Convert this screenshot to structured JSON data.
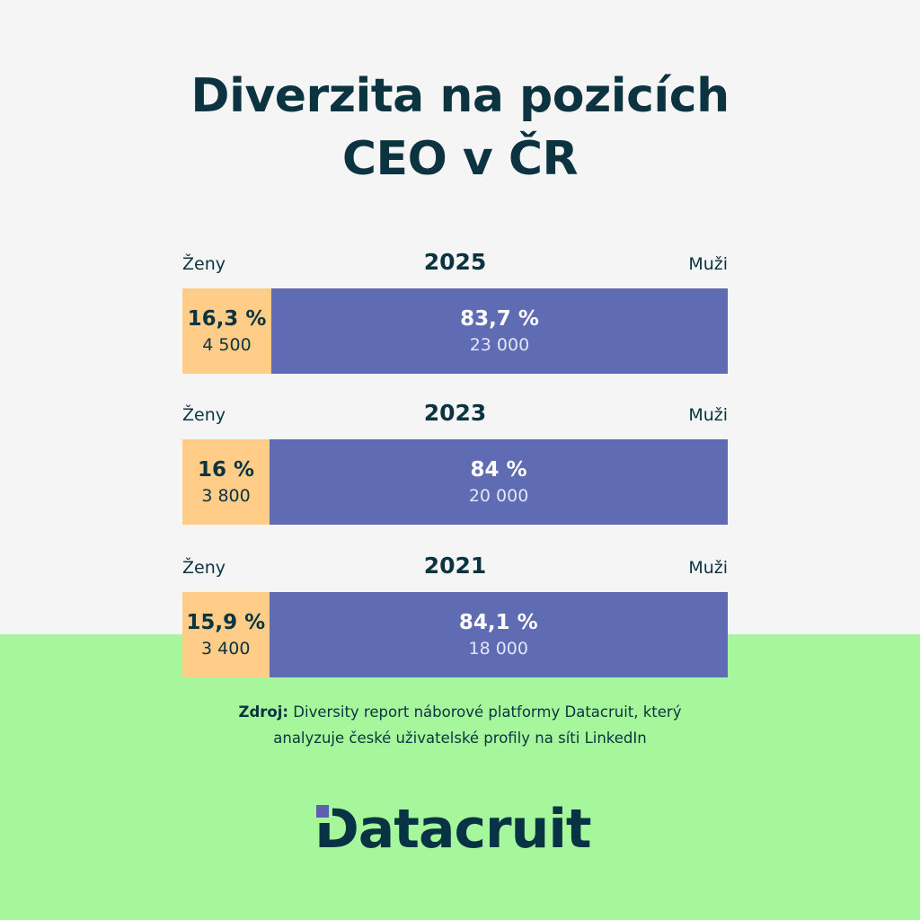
{
  "title_line1": "Diverzita na pozicích",
  "title_line2": "CEO v ČR",
  "colors": {
    "women": "#ffcd87",
    "men": "#5f6bb3",
    "top_bg": "#f5f5f5",
    "bottom_bg": "#a6f79b",
    "text": "#0b3340"
  },
  "chart_data": {
    "type": "bar",
    "stacked": true,
    "orientation": "horizontal",
    "title": "Diverzita na pozicích CEO v ČR",
    "left_label": "Ženy",
    "right_label": "Muži",
    "categories": [
      "2025",
      "2023",
      "2021"
    ],
    "series": [
      {
        "name": "Ženy",
        "values": [
          16.3,
          16,
          15.9
        ],
        "pct_labels": [
          "16,3 %",
          "16 %",
          "15,9 %"
        ],
        "counts": [
          "4 500",
          "3 800",
          "3 400"
        ]
      },
      {
        "name": "Muži",
        "values": [
          83.7,
          84,
          84.1
        ],
        "pct_labels": [
          "83,7 %",
          "84 %",
          "84,1 %"
        ],
        "counts": [
          "23 000",
          "20 000",
          "18 000"
        ]
      }
    ],
    "xlim": [
      0,
      100
    ]
  },
  "source_label": "Zdroj:",
  "source_line1": "Diversity report náborové platformy Datacruit, který",
  "source_line2": "analyzuje české uživatelské profily na síti LinkedIn",
  "logo_text": "Datacruit"
}
